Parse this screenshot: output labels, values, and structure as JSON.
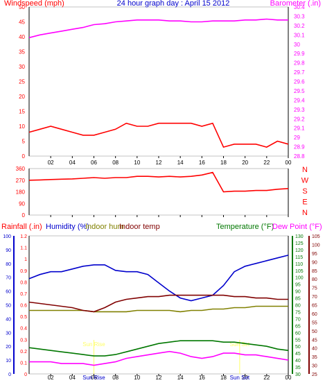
{
  "title": "24 hour graph day : April 15 2012",
  "colors": {
    "wind": "#ff0000",
    "gust": "#0000cc",
    "baro": "#ff00ff",
    "dir": "#ff0000",
    "rain": "#ff0000",
    "humidity": "#0000cc",
    "indoor_hum": "#808000",
    "indoor_temp": "#800000",
    "temperature": "#007700",
    "dew_point": "#ff00ff",
    "sunmark": "#ffff66",
    "axis": "#000000"
  },
  "top_panel": {
    "left_label": "Windspeed (mph)",
    "right_label": "Barometer (.in)",
    "left_ticks": [
      "0",
      "5",
      "10",
      "15",
      "20",
      "25",
      "30",
      "35",
      "40",
      "45",
      "50"
    ],
    "right_ticks": [
      "28.8",
      "28.9",
      "29",
      "29.1",
      "29.2",
      "29.3",
      "29.4",
      "29.5",
      "29.6",
      "29.7",
      "29.8",
      "29.9",
      "30",
      "30.1",
      "30.2",
      "30.3",
      "30.4"
    ]
  },
  "mid_panel": {
    "left_ticks": [
      "0",
      "90",
      "180",
      "270",
      "360"
    ],
    "right_letters": [
      "N",
      "W",
      "S",
      "E",
      "N"
    ]
  },
  "bottom_panel": {
    "legend": {
      "rain": "Rainfall (.in)",
      "humidity": "Humidity (%)",
      "indoor_hum": "Indoor hum",
      "indoor_temp": "Indoor temp",
      "temperature": "Temperature (°F)",
      "dew_point": "Dew Point (°F)"
    },
    "humidity_ticks": [
      "0",
      "10",
      "20",
      "30",
      "40",
      "50",
      "60",
      "70",
      "80",
      "90",
      "100"
    ],
    "rain_ticks": [
      "0",
      "0.1",
      "0.2",
      "0.3",
      "0.4",
      "0.5",
      "0.6",
      "0.7",
      "0.8",
      "0.9",
      "1",
      "1.1",
      "1.2"
    ],
    "temp_ticks": [
      "30",
      "35",
      "40",
      "45",
      "50",
      "55",
      "60",
      "65",
      "70",
      "75",
      "80",
      "85",
      "90",
      "95",
      "100",
      "105",
      "110",
      "115",
      "120",
      "125",
      "130"
    ],
    "dew_ticks": [
      "25",
      "30",
      "35",
      "40",
      "45",
      "50",
      "55",
      "60",
      "65",
      "70",
      "75",
      "80",
      "85",
      "90",
      "95",
      "100",
      "105"
    ],
    "sun_rise": "Sun Rise",
    "sun_set": "Sun Set",
    "sun_rise_time": "Sun Rise",
    "sun_set_time": "Sun Set"
  },
  "x_ticks": [
    "02",
    "04",
    "06",
    "08",
    "10",
    "12",
    "14",
    "16",
    "18",
    "20",
    "22",
    "00"
  ],
  "chart_data": {
    "type": "line",
    "x_hours": [
      0,
      1,
      2,
      3,
      4,
      5,
      6,
      7,
      8,
      9,
      10,
      11,
      12,
      13,
      14,
      15,
      16,
      17,
      18,
      19,
      20,
      21,
      22,
      23,
      24
    ],
    "series": [
      {
        "name": "Windspeed (mph)",
        "panel": "top",
        "axis": "left",
        "values": [
          8,
          9,
          10,
          9,
          8,
          7,
          7,
          8,
          9,
          11,
          10,
          10,
          11,
          11,
          11,
          11,
          10,
          11,
          3,
          4,
          4,
          4,
          3,
          5,
          4
        ]
      },
      {
        "name": "Barometer (.in)",
        "panel": "top",
        "axis": "right",
        "values": [
          30.07,
          30.1,
          30.12,
          30.14,
          30.16,
          30.18,
          30.21,
          30.22,
          30.24,
          30.25,
          30.26,
          30.26,
          30.26,
          30.25,
          30.25,
          30.24,
          30.24,
          30.25,
          30.25,
          30.25,
          30.26,
          30.26,
          30.27,
          30.26,
          30.26
        ]
      },
      {
        "name": "Wind direction",
        "panel": "mid",
        "axis": "left",
        "values": [
          270,
          272,
          275,
          278,
          280,
          285,
          290,
          285,
          290,
          290,
          300,
          300,
          295,
          300,
          295,
          300,
          310,
          330,
          180,
          185,
          185,
          190,
          190,
          200,
          205
        ]
      },
      {
        "name": "Humidity (%)",
        "panel": "bottom",
        "axis": "humidity",
        "values": [
          69,
          72,
          74,
          74,
          76,
          78,
          79,
          79,
          75,
          74,
          74,
          72,
          66,
          60,
          55,
          53,
          55,
          57,
          64,
          74,
          78,
          80,
          82,
          84,
          86
        ]
      },
      {
        "name": "Indoor hum",
        "panel": "bottom",
        "axis": "humidity",
        "values": [
          46,
          46,
          46,
          46,
          46,
          46,
          45,
          45,
          45,
          45,
          46,
          46,
          46,
          46,
          45,
          46,
          46,
          47,
          47,
          48,
          48,
          49,
          49,
          49,
          49
        ]
      },
      {
        "name": "Indoor temp",
        "panel": "bottom",
        "axis": "temp",
        "values": [
          82,
          81,
          80,
          79,
          78,
          76,
          75,
          78,
          82,
          84,
          85,
          86,
          86,
          87,
          87,
          87,
          87,
          87,
          87,
          86,
          86,
          85,
          85,
          84,
          84
        ]
      },
      {
        "name": "Temperature (°F)",
        "panel": "bottom",
        "axis": "temp",
        "values": [
          49,
          48,
          47,
          46,
          45,
          44,
          43,
          43,
          44,
          46,
          48,
          50,
          52,
          53,
          54,
          54,
          54,
          54,
          53,
          53,
          52,
          51,
          50,
          48,
          47
        ]
      },
      {
        "name": "Dew Point (°F)",
        "panel": "bottom",
        "axis": "dew",
        "values": [
          32,
          32,
          32,
          31,
          31,
          31,
          30,
          31,
          32,
          34,
          35,
          36,
          37,
          38,
          37,
          35,
          34,
          35,
          37,
          37,
          36,
          36,
          35,
          34,
          33
        ]
      }
    ]
  }
}
